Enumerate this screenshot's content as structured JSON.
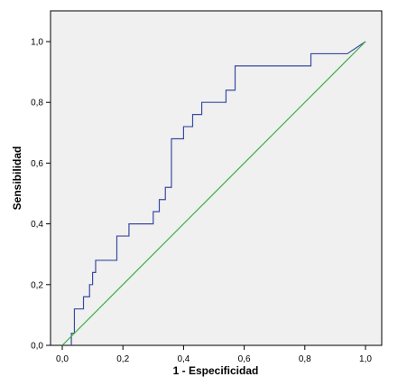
{
  "chart_data": {
    "type": "line",
    "title": "",
    "xlabel": "1 - Especificidad",
    "ylabel": "Sensibilidad",
    "xlim": [
      0,
      1
    ],
    "ylim": [
      0,
      1
    ],
    "x_ticks": [
      0,
      0.2,
      0.4,
      0.6,
      0.8,
      1.0
    ],
    "y_ticks": [
      0,
      0.2,
      0.4,
      0.6,
      0.8,
      1.0
    ],
    "x_tick_labels": [
      "0,0",
      "0,2",
      "0,4",
      "0,6",
      "0,8",
      "1,0"
    ],
    "y_tick_labels": [
      "0,0",
      "0,2",
      "0,4",
      "0,6",
      "0,8",
      "1,0"
    ],
    "grid": false,
    "legend": "none",
    "series": [
      {
        "color": "#3a4aa0",
        "x": [
          0.03,
          0.03,
          0.03,
          0.04,
          0.04,
          0.07,
          0.07,
          0.09,
          0.09,
          0.1,
          0.1,
          0.11,
          0.11,
          0.12,
          0.12,
          0.18,
          0.18,
          0.22,
          0.22,
          0.3,
          0.3,
          0.32,
          0.32,
          0.34,
          0.34,
          0.36,
          0.36,
          0.4,
          0.4,
          0.43,
          0.43,
          0.46,
          0.46,
          0.54,
          0.54,
          0.57,
          0.57,
          0.82,
          0.82,
          0.94,
          1.0
        ],
        "y": [
          0.0,
          0.04,
          0.04,
          0.04,
          0.12,
          0.12,
          0.16,
          0.16,
          0.2,
          0.2,
          0.24,
          0.24,
          0.28,
          0.28,
          0.28,
          0.28,
          0.36,
          0.36,
          0.4,
          0.4,
          0.44,
          0.44,
          0.48,
          0.48,
          0.52,
          0.52,
          0.68,
          0.68,
          0.72,
          0.72,
          0.76,
          0.76,
          0.8,
          0.8,
          0.84,
          0.84,
          0.92,
          0.92,
          0.96,
          0.96,
          1.0
        ]
      },
      {
        "color": "#3cb043",
        "x": [
          0,
          1
        ],
        "y": [
          0,
          1
        ]
      }
    ],
    "colors": {
      "plot_background": "#f0f0f0",
      "frame": "#000000"
    }
  }
}
